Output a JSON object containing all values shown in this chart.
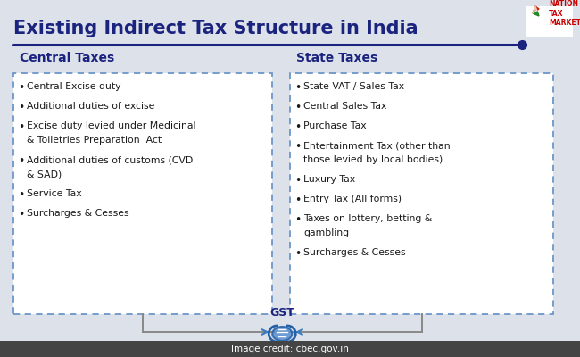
{
  "title": "Existing Indirect Tax Structure in India",
  "title_fontsize": 15,
  "title_color": "#1a237e",
  "background_color": "#dde1ea",
  "header_line_color": "#1a237e",
  "central_taxes_header": "Central Taxes",
  "state_taxes_header": "State Taxes",
  "header_fontsize": 10,
  "central_taxes": [
    "Central Excise duty",
    "Additional duties of excise",
    "Excise duty levied under Medicinal\n& Toiletries Preparation  Act",
    "Additional duties of customs (CVD\n& SAD)",
    "Service Tax",
    "Surcharges & Cesses"
  ],
  "state_taxes": [
    "State VAT / Sales Tax",
    "Central Sales Tax",
    "Purchase Tax",
    "Entertainment Tax (other than\nthose levied by local bodies)",
    "Luxury Tax",
    "Entry Tax (All forms)",
    "Taxes on lottery, betting &\ngambling",
    "Surcharges & Cesses"
  ],
  "box_border_color": "#6b96c8",
  "bullet_fontsize": 7.8,
  "bullet_color": "#1a1a1a",
  "gst_label": "GST",
  "gst_fontsize": 9,
  "footer_text": "Image credit: cbec.gov.in",
  "footer_bg": "#444444",
  "footer_text_color": "#ffffff",
  "footer_fontsize": 7.5,
  "line_color": "#888888",
  "logo_text": "NATION\nTAX\nMARKET",
  "logo_color": "#cc0000"
}
